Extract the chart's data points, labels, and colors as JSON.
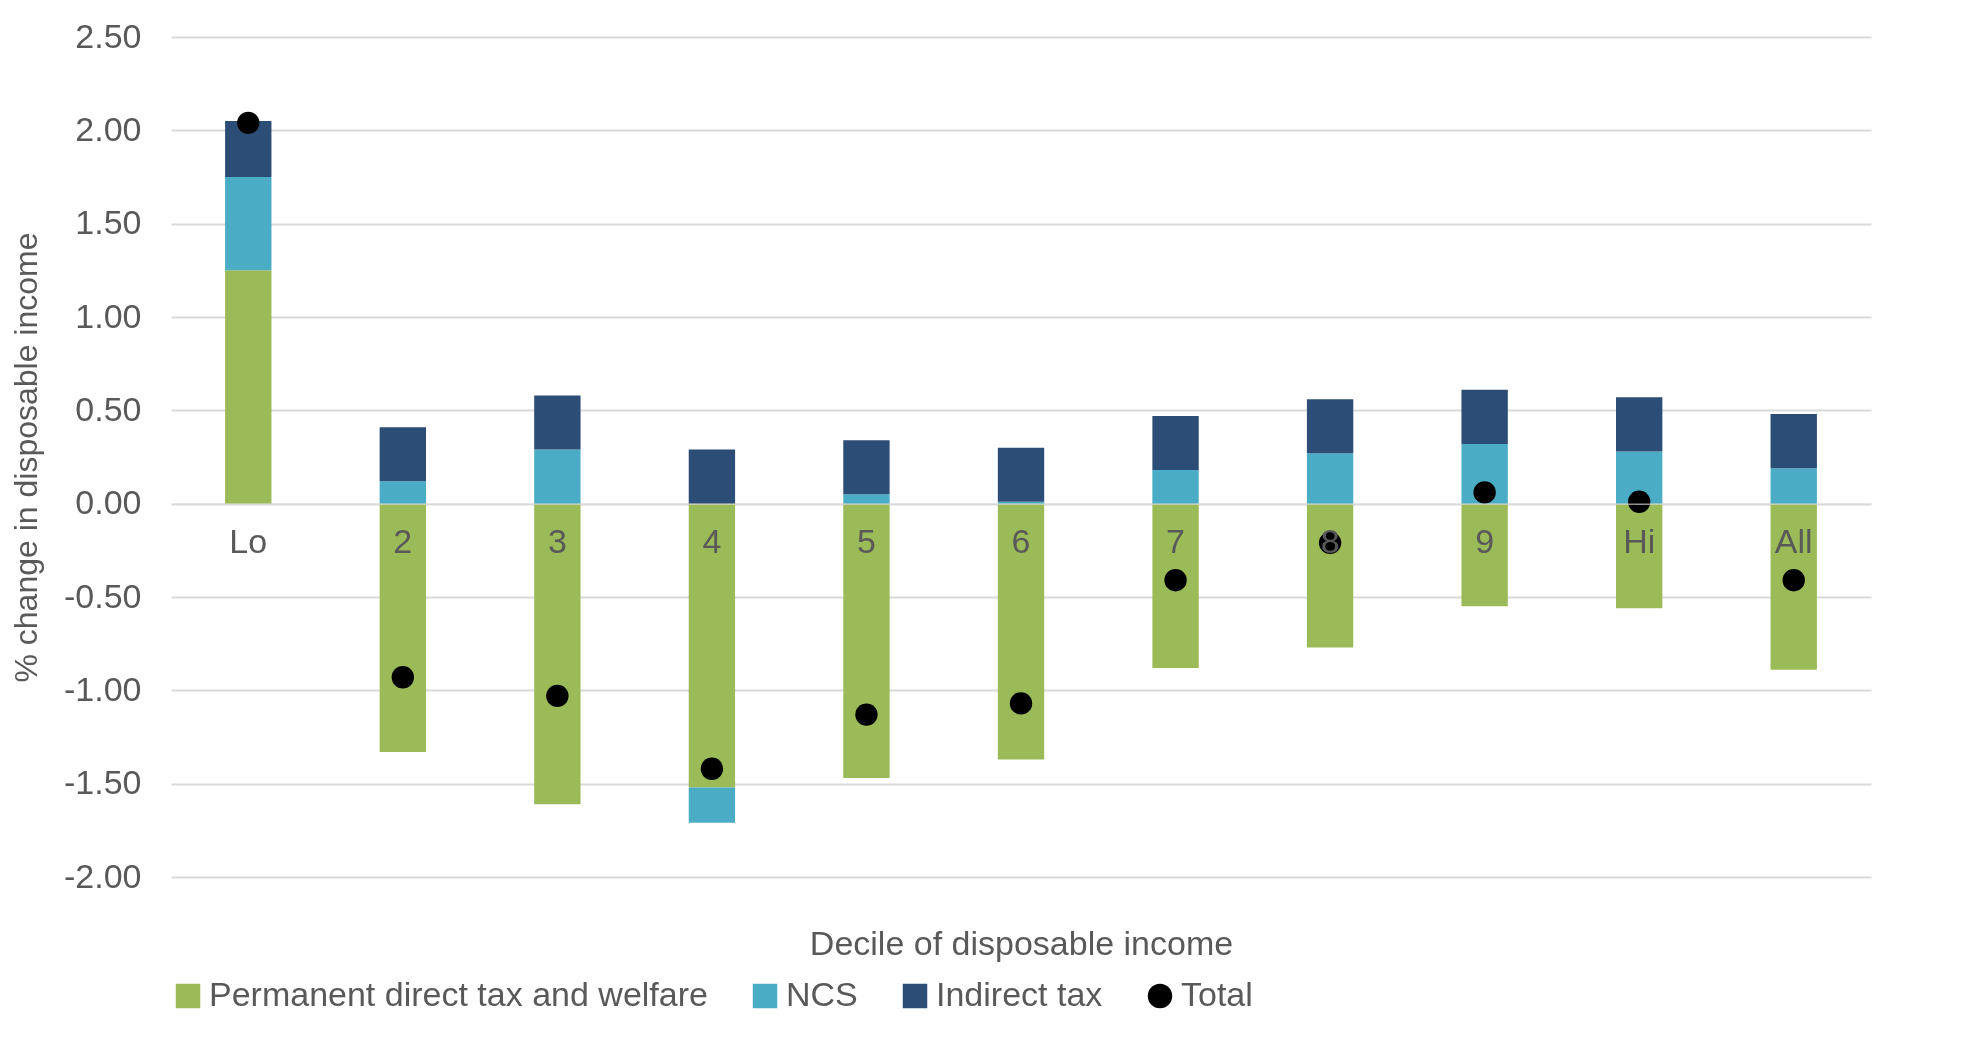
{
  "chart_data": {
    "type": "bar",
    "stacked": true,
    "xlabel": "Decile of disposable income",
    "ylabel": "% change in disposable income",
    "categories": [
      "Lo",
      "2",
      "3",
      "4",
      "5",
      "6",
      "7",
      "8",
      "9",
      "Hi",
      "All"
    ],
    "series": [
      {
        "name": "Permanent direct tax and welfare",
        "color": "#9bbb59",
        "values": [
          1.25,
          -1.33,
          -1.61,
          -1.52,
          -1.47,
          -1.37,
          -0.88,
          -0.77,
          -0.55,
          -0.56,
          -0.89
        ]
      },
      {
        "name": "NCS",
        "color": "#4bacc6",
        "values": [
          0.5,
          0.12,
          0.29,
          -0.19,
          0.05,
          0.01,
          0.18,
          0.27,
          0.32,
          0.28,
          0.19
        ]
      },
      {
        "name": "Indirect tax",
        "color": "#2c4d75",
        "values": [
          0.3,
          0.29,
          0.29,
          0.29,
          0.29,
          0.29,
          0.29,
          0.29,
          0.29,
          0.29,
          0.29
        ]
      },
      {
        "name": "Total",
        "type": "scatter",
        "color": "#000000",
        "marker": "circle",
        "values": [
          2.04,
          -0.93,
          -1.03,
          -1.42,
          -1.13,
          -1.07,
          -0.41,
          -0.21,
          0.06,
          0.01,
          -0.41
        ]
      }
    ],
    "ylim": [
      -2,
      2.5
    ],
    "yticks": [
      {
        "value": -2,
        "label": "-2.00"
      },
      {
        "value": -1.5,
        "label": "-1.50"
      },
      {
        "value": -1,
        "label": "-1.00"
      },
      {
        "value": -0.5,
        "label": "-0.50"
      },
      {
        "value": 0,
        "label": "0.00"
      },
      {
        "value": 0.5,
        "label": "0.50"
      },
      {
        "value": 1,
        "label": "1.00"
      },
      {
        "value": 1.5,
        "label": "1.50"
      },
      {
        "value": 2,
        "label": "2.00"
      },
      {
        "value": 2.5,
        "label": "2.50"
      }
    ],
    "grid": "y",
    "legend": "bottom"
  }
}
